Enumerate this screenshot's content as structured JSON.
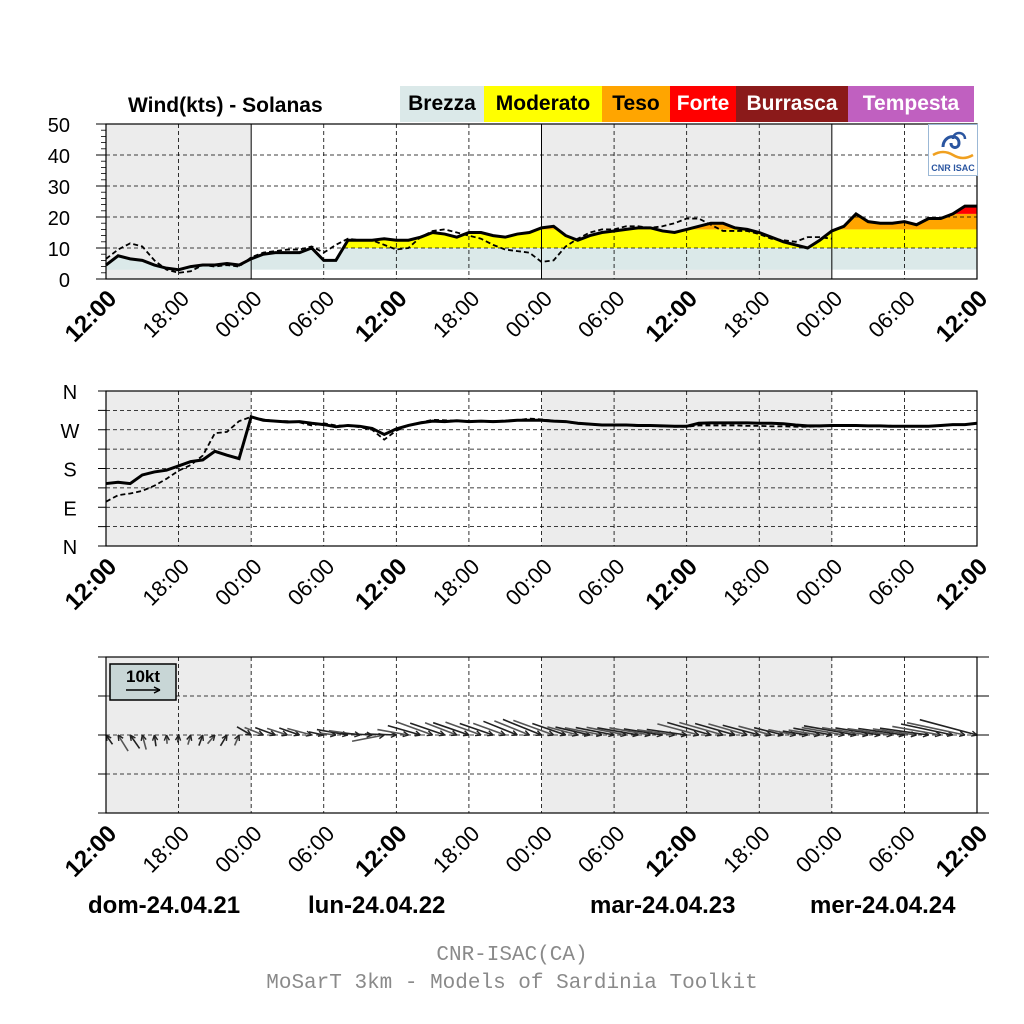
{
  "title": "Wind(kts) - Solanas",
  "legend": [
    {
      "label": "Brezza",
      "color": "#dbe9e9",
      "text_color": "#000000"
    },
    {
      "label": "Moderato",
      "color": "#ffff00",
      "text_color": "#000000"
    },
    {
      "label": "Teso",
      "color": "#ffa500",
      "text_color": "#000000"
    },
    {
      "label": "Forte",
      "color": "#ff0000",
      "text_color": "#ffffff"
    },
    {
      "label": "Burrasca",
      "color": "#8b1a1a",
      "text_color": "#ffffff"
    },
    {
      "label": "Tempesta",
      "color": "#c060c0",
      "text_color": "#ffffff"
    }
  ],
  "logo_text": "CNR ISAC",
  "vector_key_label": "10kt",
  "day_labels": [
    "dom-24.04.21",
    "lun-24.04.22",
    "mar-24.04.23",
    "mer-24.04.24"
  ],
  "footer": [
    "CNR-ISAC(CA)",
    "MoSarT 3km - Models of Sardinia Toolkit"
  ],
  "chart_data": [
    {
      "type": "area",
      "name": "speed",
      "title": "Wind(kts) - Solanas",
      "x_ticks": [
        "12:00",
        "18:00",
        "00:00",
        "06:00",
        "12:00",
        "18:00",
        "00:00",
        "06:00",
        "12:00",
        "18:00",
        "00:00",
        "06:00",
        "12:00"
      ],
      "x_range_hours": [
        0,
        72
      ],
      "ylim": [
        0,
        50
      ],
      "y_ticks": [
        "0",
        "10",
        "20",
        "30",
        "40",
        "50"
      ],
      "bands": [
        {
          "label": "Brezza",
          "from": 3,
          "to": 10,
          "color": "#dbe9e9"
        },
        {
          "label": "Moderato",
          "from": 10,
          "to": 16,
          "color": "#ffff00"
        },
        {
          "label": "Teso",
          "from": 16,
          "to": 21,
          "color": "#ffa500"
        },
        {
          "label": "Forte",
          "from": 21,
          "to": 27,
          "color": "#ff0000"
        }
      ],
      "series": [
        {
          "style": "solid",
          "x": [
            0,
            1,
            2,
            3,
            4,
            5,
            6,
            7,
            8,
            9,
            10,
            11,
            12,
            13,
            14,
            15,
            16,
            17,
            18,
            19,
            20,
            21,
            22,
            23,
            24,
            25,
            26,
            27,
            28,
            29,
            30,
            31,
            32,
            33,
            34,
            35,
            36,
            37,
            38,
            39,
            40,
            41,
            42,
            43,
            44,
            45,
            46,
            47,
            48,
            49,
            50,
            51,
            52,
            53,
            54,
            55,
            56,
            57,
            58,
            59,
            60,
            61,
            62,
            63,
            64,
            65,
            66,
            67,
            68,
            69,
            70,
            71,
            72
          ],
          "values": [
            4.5,
            7.5,
            6.5,
            6,
            4.5,
            3.5,
            3,
            4,
            4.5,
            4.5,
            5,
            4.5,
            6.5,
            8,
            8.5,
            8.5,
            8.5,
            10,
            6,
            6,
            12.5,
            12.5,
            12.5,
            13,
            12.5,
            12.5,
            13.5,
            15,
            14.5,
            13.5,
            15,
            15,
            14,
            13.5,
            14.5,
            15,
            16.5,
            17,
            14,
            12.5,
            14,
            15,
            15.5,
            16,
            16.5,
            16.5,
            15.5,
            15,
            16,
            17,
            18,
            18,
            16.5,
            16,
            15,
            13.5,
            12,
            11,
            10,
            12.5,
            15.5,
            17,
            21,
            18.5,
            18,
            18,
            18.5,
            17.5,
            19.5,
            19.5,
            21,
            23.5,
            23.5
          ]
        },
        {
          "style": "dashed",
          "x": [
            0,
            1,
            2,
            3,
            4,
            5,
            6,
            7,
            8,
            9,
            10,
            11,
            12,
            13,
            14,
            15,
            16,
            17,
            18,
            19,
            20,
            21,
            22,
            23,
            24,
            25,
            26,
            27,
            28,
            29,
            30,
            31,
            32,
            33,
            34,
            35,
            36,
            37,
            38,
            39,
            40,
            41,
            42,
            43,
            44,
            45,
            46,
            47,
            48,
            49,
            50,
            51,
            52,
            53,
            54,
            55,
            56,
            57,
            58,
            59,
            60
          ],
          "values": [
            6.5,
            9.5,
            11.5,
            10.5,
            6,
            3,
            2,
            2.5,
            4.5,
            4,
            4.5,
            4,
            7,
            8.5,
            9,
            9.5,
            9.5,
            10.5,
            8.5,
            11,
            13,
            12.5,
            12.5,
            11,
            9.5,
            10,
            13.5,
            15.5,
            16,
            15,
            14,
            13,
            11,
            9.5,
            9,
            8.5,
            5.5,
            6,
            10.5,
            13,
            15,
            16,
            16,
            17,
            17,
            16.5,
            17,
            18,
            19.5,
            19.5,
            17.5,
            15.5,
            15.5,
            15.5,
            14.5,
            13,
            12.5,
            12,
            13.5,
            13.5,
            13
          ]
        }
      ]
    },
    {
      "type": "line",
      "name": "direction",
      "x_ticks": [
        "12:00",
        "18:00",
        "00:00",
        "06:00",
        "12:00",
        "18:00",
        "00:00",
        "06:00",
        "12:00",
        "18:00",
        "00:00",
        "06:00",
        "12:00"
      ],
      "y_ticks": [
        "N",
        "E",
        "S",
        "W",
        "N"
      ],
      "ylim": [
        0,
        360
      ],
      "series": [
        {
          "style": "solid",
          "x": [
            0,
            1,
            2,
            3,
            4,
            5,
            6,
            7,
            8,
            9,
            10,
            11,
            12,
            13,
            14,
            15,
            16,
            17,
            18,
            19,
            20,
            21,
            22,
            23,
            24,
            25,
            26,
            27,
            28,
            29,
            30,
            31,
            32,
            33,
            34,
            35,
            36,
            37,
            38,
            39,
            40,
            41,
            42,
            43,
            44,
            45,
            46,
            47,
            48,
            49,
            50,
            51,
            52,
            53,
            54,
            55,
            56,
            57,
            58,
            59,
            60,
            61,
            62,
            63,
            64,
            65,
            66,
            67,
            68,
            69,
            70,
            71,
            72
          ],
          "values": [
            145,
            148,
            145,
            165,
            172,
            176,
            186,
            196,
            200,
            220,
            211,
            203,
            300,
            292,
            290,
            288,
            289,
            285,
            282,
            277,
            280,
            278,
            273,
            259,
            272,
            280,
            286,
            290,
            289,
            291,
            289,
            290,
            289,
            290,
            292,
            292,
            292,
            290,
            289,
            285,
            283,
            281,
            281,
            281,
            280,
            280,
            279,
            278,
            278,
            285,
            286,
            286,
            286,
            286,
            285,
            285,
            284,
            281,
            279,
            279,
            280,
            280,
            280,
            279,
            279,
            278,
            278,
            278,
            278,
            280,
            282,
            282,
            285
          ]
        },
        {
          "style": "dashed",
          "x": [
            0,
            1,
            2,
            3,
            4,
            5,
            6,
            7,
            8,
            9,
            10,
            11,
            12,
            13,
            14,
            15,
            16,
            17,
            18,
            19,
            20,
            21,
            22,
            23,
            24,
            25,
            26,
            27,
            28,
            29,
            30,
            31,
            32,
            33,
            34,
            35,
            36,
            37,
            38,
            39,
            40,
            41,
            42,
            43,
            44,
            45,
            46,
            47,
            48,
            49,
            50,
            51,
            52,
            53,
            54,
            55,
            56,
            57,
            58,
            59,
            60
          ],
          "values": [
            103,
            118,
            122,
            128,
            140,
            156,
            175,
            188,
            210,
            262,
            265,
            290,
            300,
            294,
            290,
            290,
            287,
            280,
            285,
            280,
            279,
            276,
            270,
            247,
            268,
            280,
            287,
            293,
            292,
            291,
            290,
            289,
            290,
            291,
            292,
            296,
            294,
            291,
            288,
            284,
            282,
            281,
            281,
            280,
            279,
            279,
            278,
            277,
            277,
            280,
            280,
            280,
            280,
            279,
            279,
            278,
            278,
            277,
            277,
            278,
            279
          ]
        }
      ]
    },
    {
      "type": "vector",
      "name": "wind-barbs",
      "x_ticks": [
        "12:00",
        "18:00",
        "00:00",
        "06:00",
        "12:00",
        "18:00",
        "00:00",
        "06:00",
        "12:00",
        "18:00",
        "00:00",
        "06:00",
        "12:00"
      ],
      "key": "10kt"
    }
  ]
}
